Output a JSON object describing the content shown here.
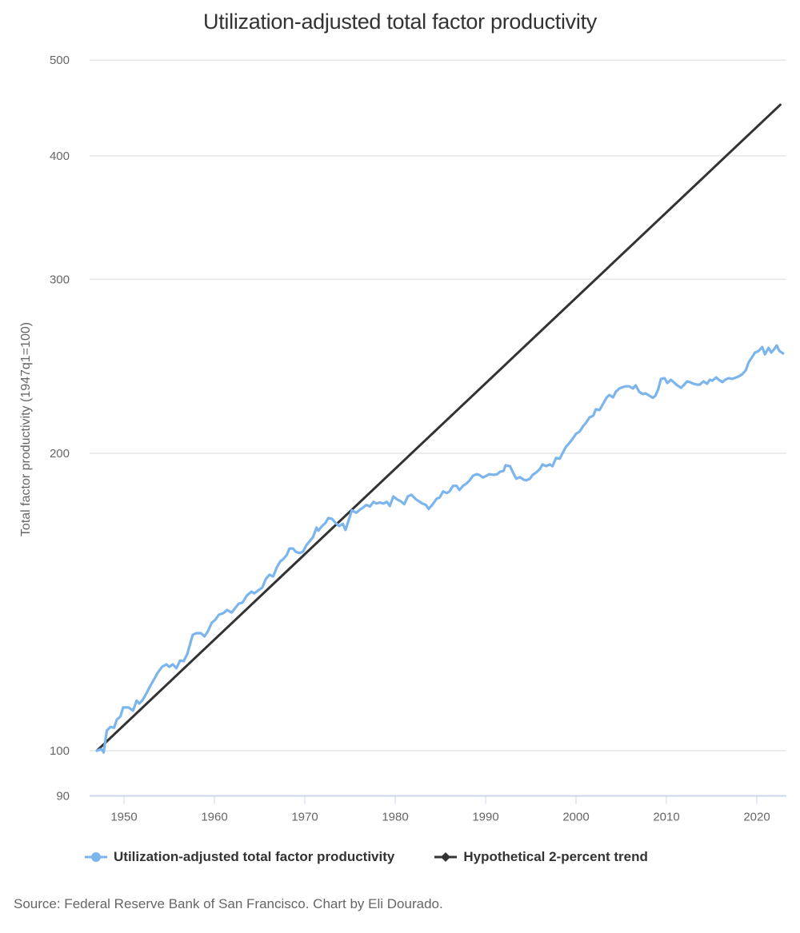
{
  "chart_data": {
    "type": "line",
    "title": "Utilization-adjusted total factor productivity",
    "xlabel": "",
    "ylabel": "Total factor productivity (1947q1=100)",
    "y_scale": "log",
    "ylim": [
      90,
      500
    ],
    "xlim": [
      1946.4,
      2023.3
    ],
    "y_ticks": [
      90,
      100,
      200,
      300,
      400,
      500
    ],
    "x_ticks": [
      1950,
      1960,
      1970,
      1980,
      1990,
      2000,
      2010,
      2020
    ],
    "grid": true,
    "legend_position": "bottom-left",
    "series": [
      {
        "name": "Utilization-adjusted total factor productivity",
        "color": "#7cb5ec",
        "marker": "circle",
        "points": [
          [
            1947.0,
            100.0
          ],
          [
            1947.5,
            100.4
          ],
          [
            1947.75,
            99.6
          ],
          [
            1948.1,
            104.8
          ],
          [
            1948.5,
            105.7
          ],
          [
            1948.9,
            105.5
          ],
          [
            1949.2,
            107.5
          ],
          [
            1949.6,
            108.3
          ],
          [
            1949.9,
            110.6
          ],
          [
            1950.5,
            110.6
          ],
          [
            1951.0,
            109.8
          ],
          [
            1951.4,
            112.4
          ],
          [
            1951.7,
            111.6
          ],
          [
            1952.1,
            112.7
          ],
          [
            1952.5,
            114.4
          ],
          [
            1952.9,
            116.3
          ],
          [
            1953.3,
            118.0
          ],
          [
            1953.7,
            119.8
          ],
          [
            1954.2,
            121.6
          ],
          [
            1954.7,
            122.3
          ],
          [
            1955.0,
            121.6
          ],
          [
            1955.4,
            122.3
          ],
          [
            1955.8,
            121.2
          ],
          [
            1956.2,
            123.4
          ],
          [
            1956.6,
            123.2
          ],
          [
            1957.0,
            125.3
          ],
          [
            1957.3,
            128.1
          ],
          [
            1957.6,
            131.0
          ],
          [
            1958.0,
            131.5
          ],
          [
            1958.5,
            131.5
          ],
          [
            1958.9,
            130.5
          ],
          [
            1959.3,
            132.2
          ],
          [
            1959.7,
            134.7
          ],
          [
            1960.1,
            135.7
          ],
          [
            1960.5,
            137.3
          ],
          [
            1961.0,
            137.8
          ],
          [
            1961.4,
            138.8
          ],
          [
            1961.9,
            138.0
          ],
          [
            1962.2,
            139.1
          ],
          [
            1962.7,
            140.9
          ],
          [
            1963.1,
            141.2
          ],
          [
            1963.6,
            143.6
          ],
          [
            1964.1,
            144.9
          ],
          [
            1964.4,
            144.3
          ],
          [
            1964.9,
            145.4
          ],
          [
            1965.3,
            146.3
          ],
          [
            1965.7,
            149.3
          ],
          [
            1966.1,
            150.7
          ],
          [
            1966.5,
            150.1
          ],
          [
            1966.9,
            153.3
          ],
          [
            1967.3,
            155.5
          ],
          [
            1967.6,
            156.2
          ],
          [
            1968.0,
            157.8
          ],
          [
            1968.3,
            160.2
          ],
          [
            1968.7,
            160.2
          ],
          [
            1969.0,
            159.0
          ],
          [
            1969.4,
            158.5
          ],
          [
            1969.8,
            159.0
          ],
          [
            1970.2,
            161.6
          ],
          [
            1970.6,
            163.2
          ],
          [
            1970.9,
            164.5
          ],
          [
            1971.3,
            168.2
          ],
          [
            1971.5,
            167.0
          ],
          [
            1971.9,
            168.8
          ],
          [
            1972.3,
            170.1
          ],
          [
            1972.6,
            172.0
          ],
          [
            1973.0,
            171.7
          ],
          [
            1973.4,
            170.1
          ],
          [
            1973.8,
            168.8
          ],
          [
            1974.2,
            169.7
          ],
          [
            1974.5,
            167.3
          ],
          [
            1974.9,
            171.7
          ],
          [
            1975.2,
            175.1
          ],
          [
            1975.7,
            174.1
          ],
          [
            1976.1,
            175.4
          ],
          [
            1976.4,
            176.1
          ],
          [
            1976.8,
            177.3
          ],
          [
            1977.2,
            176.7
          ],
          [
            1977.6,
            178.6
          ],
          [
            1977.9,
            177.9
          ],
          [
            1978.3,
            178.3
          ],
          [
            1978.7,
            177.9
          ],
          [
            1979.1,
            178.6
          ],
          [
            1979.4,
            176.9
          ],
          [
            1979.8,
            180.9
          ],
          [
            1980.2,
            179.6
          ],
          [
            1980.6,
            178.9
          ],
          [
            1981.0,
            177.6
          ],
          [
            1981.4,
            180.9
          ],
          [
            1981.8,
            181.6
          ],
          [
            1982.3,
            179.6
          ],
          [
            1982.6,
            178.9
          ],
          [
            1983.0,
            177.9
          ],
          [
            1983.4,
            177.3
          ],
          [
            1983.7,
            175.7
          ],
          [
            1984.1,
            177.3
          ],
          [
            1984.6,
            180.0
          ],
          [
            1984.9,
            180.3
          ],
          [
            1985.3,
            183.0
          ],
          [
            1985.7,
            182.3
          ],
          [
            1986.0,
            183.0
          ],
          [
            1986.4,
            185.4
          ],
          [
            1986.8,
            185.4
          ],
          [
            1987.1,
            183.6
          ],
          [
            1987.5,
            185.4
          ],
          [
            1987.9,
            186.5
          ],
          [
            1988.2,
            187.6
          ],
          [
            1988.6,
            189.8
          ],
          [
            1989.0,
            190.5
          ],
          [
            1989.3,
            190.2
          ],
          [
            1989.7,
            189.0
          ],
          [
            1990.1,
            189.8
          ],
          [
            1990.4,
            190.5
          ],
          [
            1990.9,
            190.2
          ],
          [
            1991.3,
            190.5
          ],
          [
            1991.6,
            191.6
          ],
          [
            1992.0,
            192.0
          ],
          [
            1992.2,
            194.5
          ],
          [
            1992.7,
            194.1
          ],
          [
            1993.1,
            190.7
          ],
          [
            1993.4,
            188.5
          ],
          [
            1993.8,
            189.2
          ],
          [
            1994.2,
            188.1
          ],
          [
            1994.5,
            187.8
          ],
          [
            1994.9,
            188.5
          ],
          [
            1995.2,
            190.2
          ],
          [
            1995.6,
            191.3
          ],
          [
            1996.0,
            192.8
          ],
          [
            1996.3,
            194.9
          ],
          [
            1996.7,
            194.1
          ],
          [
            1997.1,
            194.9
          ],
          [
            1997.4,
            194.1
          ],
          [
            1997.8,
            197.9
          ],
          [
            1998.2,
            197.5
          ],
          [
            1998.6,
            200.8
          ],
          [
            1998.9,
            203.1
          ],
          [
            1999.3,
            205.0
          ],
          [
            1999.7,
            207.3
          ],
          [
            2000.0,
            209.3
          ],
          [
            2000.4,
            210.4
          ],
          [
            2000.8,
            213.1
          ],
          [
            2001.1,
            214.7
          ],
          [
            2001.5,
            217.5
          ],
          [
            2001.9,
            218.3
          ],
          [
            2002.2,
            221.6
          ],
          [
            2002.6,
            221.2
          ],
          [
            2003.0,
            224.5
          ],
          [
            2003.4,
            227.8
          ],
          [
            2003.7,
            229.1
          ],
          [
            2004.1,
            227.8
          ],
          [
            2004.4,
            230.8
          ],
          [
            2004.8,
            232.6
          ],
          [
            2005.2,
            233.4
          ],
          [
            2005.5,
            233.8
          ],
          [
            2005.9,
            233.8
          ],
          [
            2006.3,
            232.6
          ],
          [
            2006.6,
            234.3
          ],
          [
            2007.0,
            230.8
          ],
          [
            2007.4,
            229.6
          ],
          [
            2007.7,
            230.0
          ],
          [
            2008.1,
            228.8
          ],
          [
            2008.5,
            227.6
          ],
          [
            2008.8,
            228.8
          ],
          [
            2009.1,
            232.2
          ],
          [
            2009.4,
            237.9
          ],
          [
            2009.8,
            238.3
          ],
          [
            2010.1,
            235.6
          ],
          [
            2010.5,
            237.4
          ],
          [
            2010.9,
            235.6
          ],
          [
            2011.2,
            234.3
          ],
          [
            2011.6,
            233.0
          ],
          [
            2011.9,
            234.3
          ],
          [
            2012.3,
            236.5
          ],
          [
            2012.6,
            236.1
          ],
          [
            2013.0,
            235.2
          ],
          [
            2013.4,
            234.7
          ],
          [
            2013.7,
            234.7
          ],
          [
            2014.1,
            236.5
          ],
          [
            2014.5,
            235.2
          ],
          [
            2014.8,
            237.4
          ],
          [
            2015.1,
            236.9
          ],
          [
            2015.5,
            238.7
          ],
          [
            2015.8,
            237.4
          ],
          [
            2016.2,
            236.1
          ],
          [
            2016.5,
            237.4
          ],
          [
            2016.9,
            238.3
          ],
          [
            2017.3,
            237.9
          ],
          [
            2017.7,
            238.7
          ],
          [
            2018.0,
            239.2
          ],
          [
            2018.4,
            240.5
          ],
          [
            2018.8,
            242.8
          ],
          [
            2019.1,
            247.3
          ],
          [
            2019.5,
            250.5
          ],
          [
            2019.8,
            252.9
          ],
          [
            2020.2,
            253.8
          ],
          [
            2020.6,
            256.2
          ],
          [
            2020.9,
            251.9
          ],
          [
            2021.3,
            255.7
          ],
          [
            2021.6,
            252.9
          ],
          [
            2021.9,
            254.8
          ],
          [
            2022.2,
            257.1
          ],
          [
            2022.5,
            253.8
          ],
          [
            2022.9,
            252.4
          ]
        ]
      },
      {
        "name": "Hypothetical 2-percent trend",
        "color": "#333333",
        "marker": "diamond",
        "growth_rate_percent": 2,
        "start": [
          1947.0,
          100
        ],
        "end": [
          2022.6,
          450.6
        ]
      }
    ]
  },
  "source_note": "Source: Federal Reserve Bank of San Francisco. Chart by Eli Dourado."
}
